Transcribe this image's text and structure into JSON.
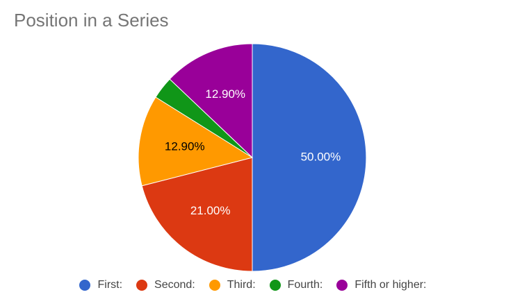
{
  "chart_data": {
    "type": "pie",
    "title": "Position in a Series",
    "legend_position": "bottom",
    "slices": [
      {
        "label": "First:",
        "value": 50.0,
        "display": "50.00%",
        "color": "#3366cc",
        "label_color": "#ffffff"
      },
      {
        "label": "Second:",
        "value": 21.0,
        "display": "21.00%",
        "color": "#dc3912",
        "label_color": "#ffffff"
      },
      {
        "label": "Third:",
        "value": 12.9,
        "display": "12.90%",
        "color": "#ff9900",
        "label_color": "#000000"
      },
      {
        "label": "Fourth:",
        "value": 3.2,
        "display": "",
        "color": "#109618",
        "label_color": "#ffffff"
      },
      {
        "label": "Fifth or higher:",
        "value": 12.9,
        "display": "12.90%",
        "color": "#990099",
        "label_color": "#ffffff"
      }
    ]
  }
}
